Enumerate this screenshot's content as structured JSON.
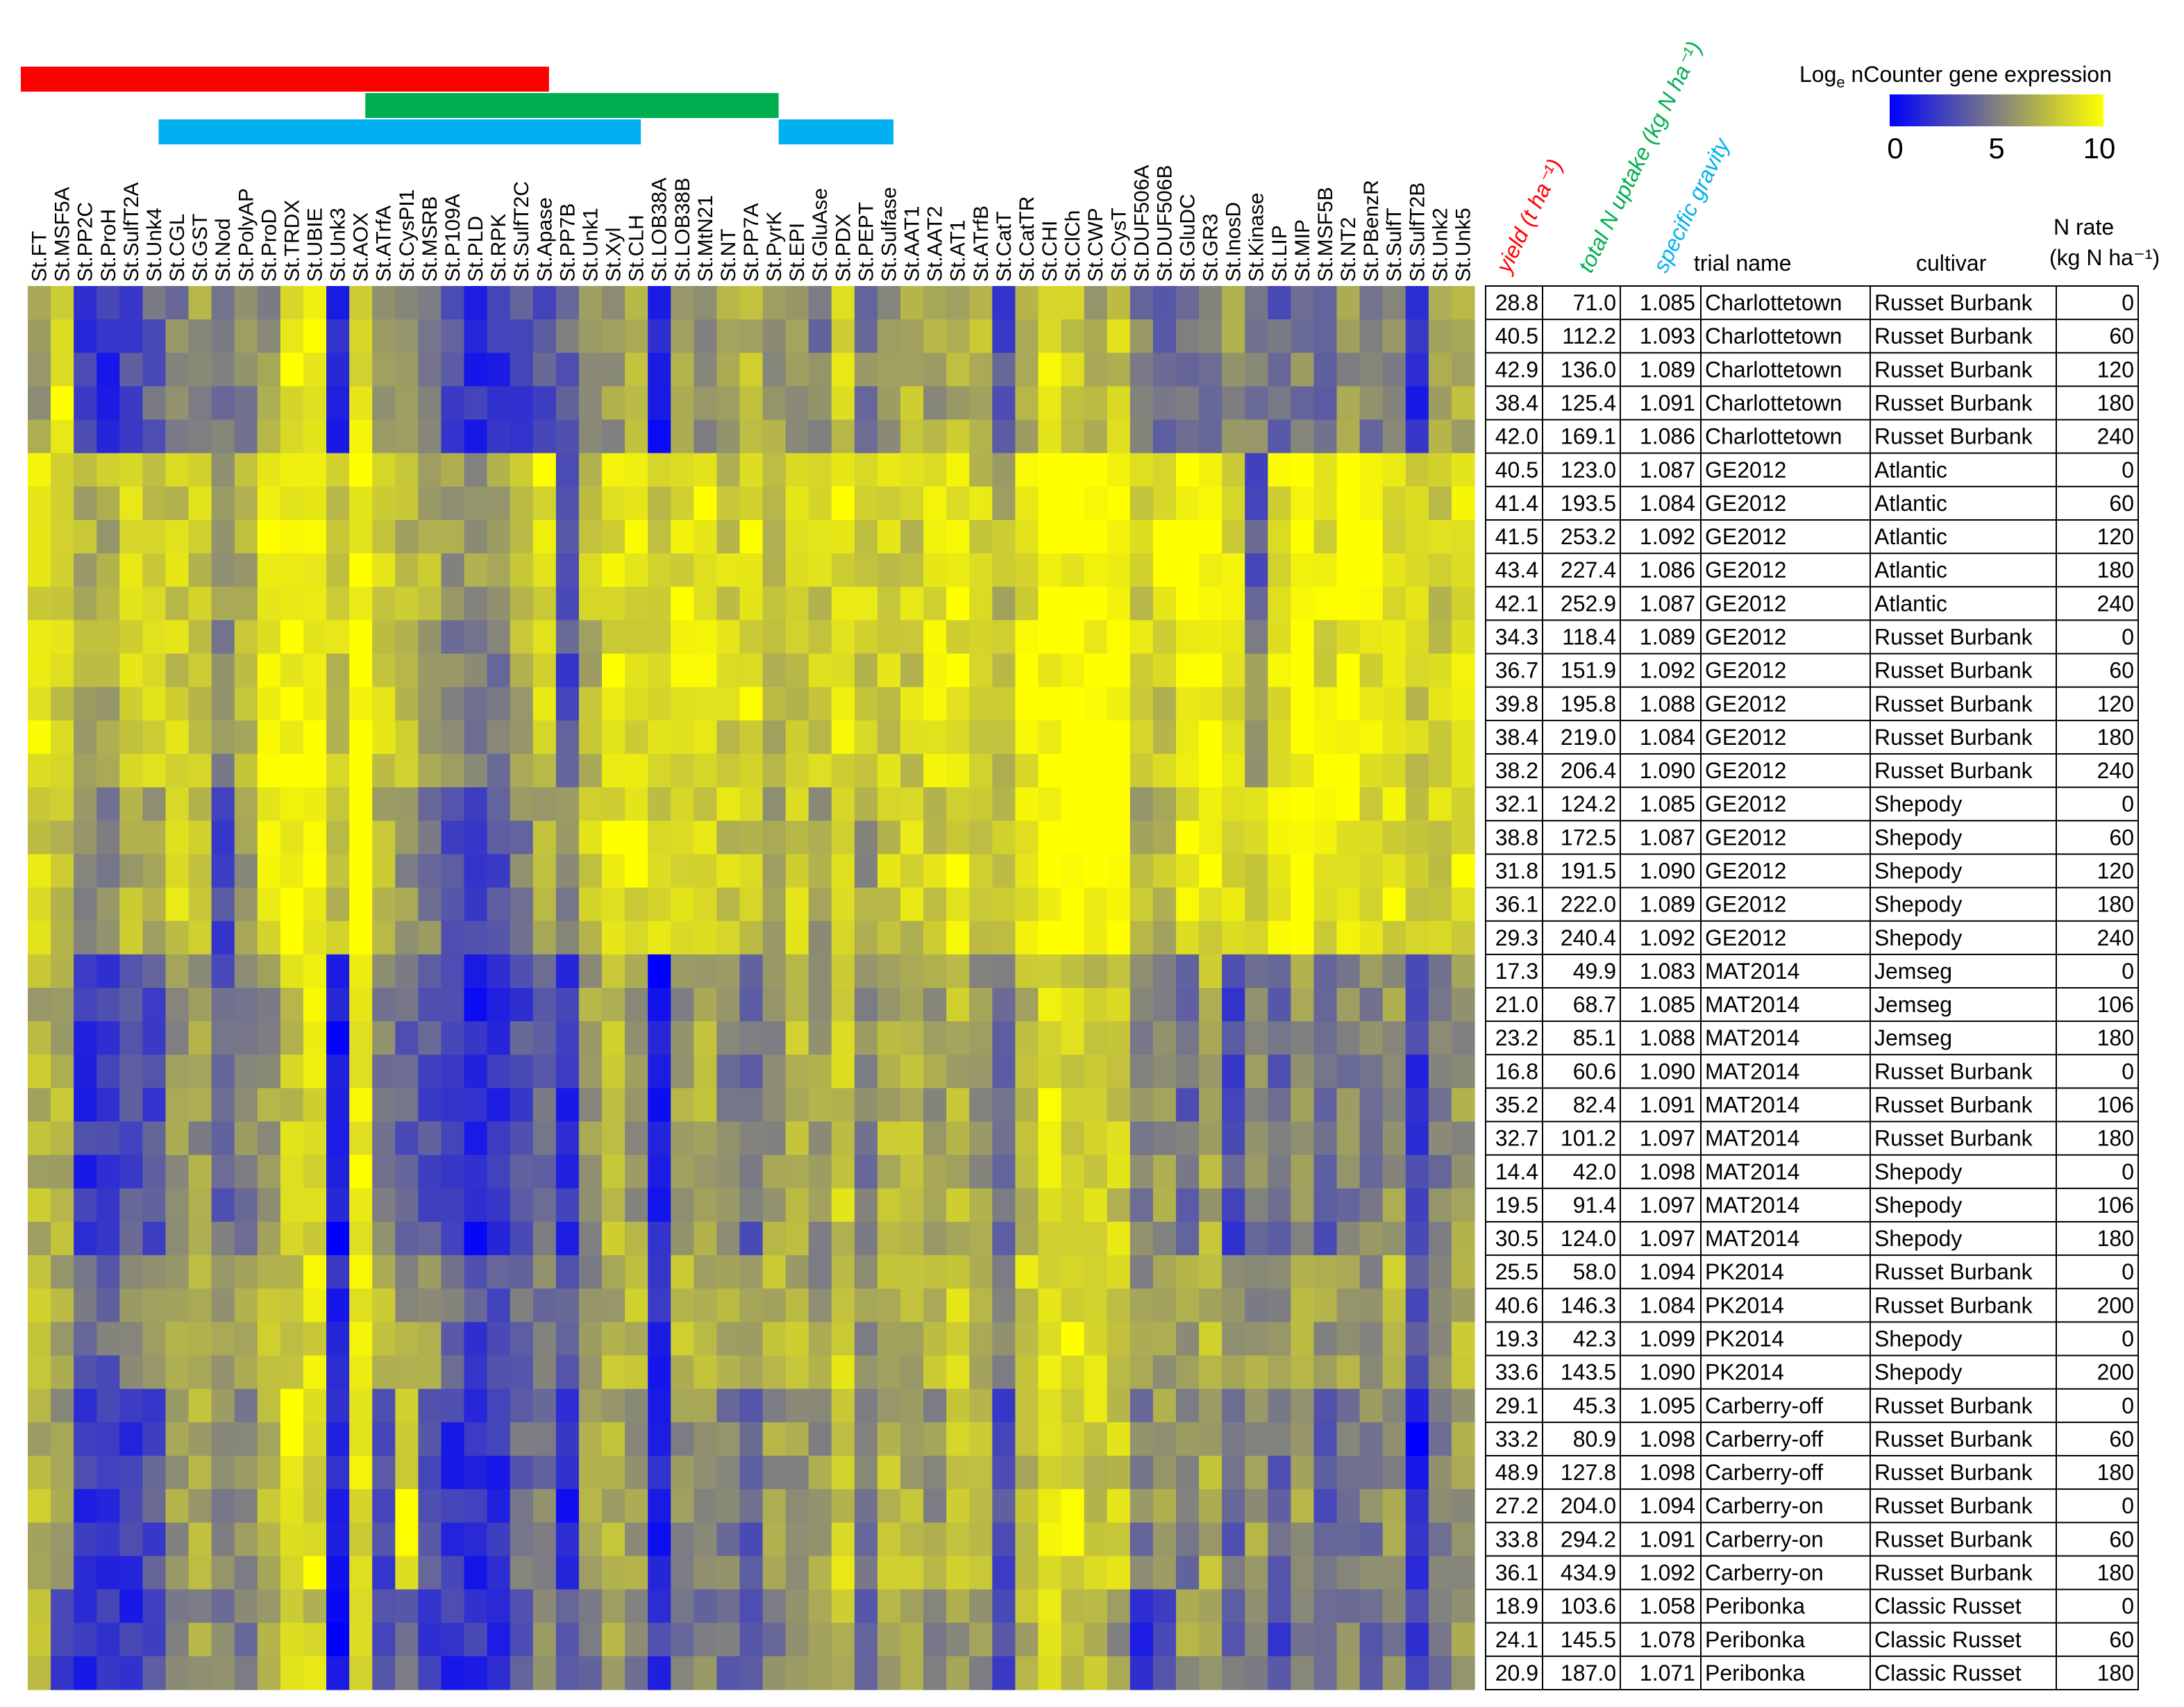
{
  "chart_data": {
    "type": "heatmap",
    "genes": [
      "St.FT",
      "St.MSF5A",
      "St.PP2C",
      "St.ProH",
      "St.SulfT2A",
      "St.Unk4",
      "St.CGL",
      "St.GST",
      "St.Nod",
      "St.PolyAP",
      "St.ProD",
      "St.TRDX",
      "St.UBIE",
      "St.Unk3",
      "St.AOX",
      "St.ATrfA",
      "St.CysPI1",
      "St.MSRB",
      "St.P109A",
      "St.PLD",
      "St.RPK",
      "St.SulfT2C",
      "St.Apase",
      "St.PP7B",
      "St.Unk1",
      "St.Xyl",
      "St.CLH",
      "St.LOB38A",
      "St.LOB38B",
      "St.MtN21",
      "St.NT",
      "St.PP7A",
      "St.PyrK",
      "St.EPI",
      "St.GluAse",
      "St.PDX",
      "St.PEPT",
      "St.Sulfase",
      "St.AAT1",
      "St.AAT2",
      "St.AT1",
      "St.ATrfB",
      "St.CatT",
      "St.CatTR",
      "St.CHI",
      "St.ClCh",
      "St.CWP",
      "St.CysT",
      "St.DUF506A",
      "St.DUF506B",
      "St.GluDC",
      "St.GR3",
      "St.InosD",
      "St.Kinase",
      "St.LIP",
      "St.MIP",
      "St.MSF5B",
      "St.NT2",
      "St.PBenzR",
      "St.SulfT",
      "St.SulfT2B",
      "St.Unk2",
      "St.Unk5"
    ],
    "legend": {
      "title_main": "Log",
      "title_sub": "e",
      "title_rest": " nCounter  gene  expression",
      "min": 0,
      "max": 10,
      "ticks": [
        "0",
        "5",
        "10"
      ],
      "color_low": "#0000ff",
      "color_mid": "#808080",
      "color_high": "#ffff00"
    },
    "cluster_bars": [
      {
        "color": "#ff0000",
        "from_gene": 0,
        "to_gene": 22
      },
      {
        "color": "#00b050",
        "from_gene": 15,
        "to_gene": 32
      },
      {
        "color": "#00b0f0",
        "from_gene": 6,
        "to_gene": 26
      },
      {
        "color": "#00b0f0",
        "from_gene": 33,
        "to_gene": 37
      }
    ],
    "column_headers": {
      "yield": "yield (t ha⁻¹)",
      "n_uptake": "total N uptake (kg N ha⁻¹)",
      "sg": "specific gravity",
      "trial": "trial name",
      "cultivar": "cultivar",
      "nrate_line1": "N rate",
      "nrate_line2": "(kg N ha⁻¹)"
    },
    "header_colors": {
      "yield": "#ff0000",
      "n_uptake": "#00b050",
      "sg": "#00b0f0"
    },
    "rows": [
      {
        "yield": "28.8",
        "n_uptake": "71.0",
        "sg": "1.085",
        "trial": "Charlottetown",
        "cultivar": "Russet Burbank",
        "n_rate": "0"
      },
      {
        "yield": "40.5",
        "n_uptake": "112.2",
        "sg": "1.093",
        "trial": "Charlottetown",
        "cultivar": "Russet Burbank",
        "n_rate": "60"
      },
      {
        "yield": "42.9",
        "n_uptake": "136.0",
        "sg": "1.089",
        "trial": "Charlottetown",
        "cultivar": "Russet Burbank",
        "n_rate": "120"
      },
      {
        "yield": "38.4",
        "n_uptake": "125.4",
        "sg": "1.091",
        "trial": "Charlottetown",
        "cultivar": "Russet Burbank",
        "n_rate": "180"
      },
      {
        "yield": "42.0",
        "n_uptake": "169.1",
        "sg": "1.086",
        "trial": "Charlottetown",
        "cultivar": "Russet Burbank",
        "n_rate": "240"
      },
      {
        "yield": "40.5",
        "n_uptake": "123.0",
        "sg": "1.087",
        "trial": "GE2012",
        "cultivar": "Atlantic",
        "n_rate": "0"
      },
      {
        "yield": "41.4",
        "n_uptake": "193.5",
        "sg": "1.084",
        "trial": "GE2012",
        "cultivar": "Atlantic",
        "n_rate": "60"
      },
      {
        "yield": "41.5",
        "n_uptake": "253.2",
        "sg": "1.092",
        "trial": "GE2012",
        "cultivar": "Atlantic",
        "n_rate": "120"
      },
      {
        "yield": "43.4",
        "n_uptake": "227.4",
        "sg": "1.086",
        "trial": "GE2012",
        "cultivar": "Atlantic",
        "n_rate": "180"
      },
      {
        "yield": "42.1",
        "n_uptake": "252.9",
        "sg": "1.087",
        "trial": "GE2012",
        "cultivar": "Atlantic",
        "n_rate": "240"
      },
      {
        "yield": "34.3",
        "n_uptake": "118.4",
        "sg": "1.089",
        "trial": "GE2012",
        "cultivar": "Russet Burbank",
        "n_rate": "0"
      },
      {
        "yield": "36.7",
        "n_uptake": "151.9",
        "sg": "1.092",
        "trial": "GE2012",
        "cultivar": "Russet Burbank",
        "n_rate": "60"
      },
      {
        "yield": "39.8",
        "n_uptake": "195.8",
        "sg": "1.088",
        "trial": "GE2012",
        "cultivar": "Russet Burbank",
        "n_rate": "120"
      },
      {
        "yield": "38.4",
        "n_uptake": "219.0",
        "sg": "1.084",
        "trial": "GE2012",
        "cultivar": "Russet Burbank",
        "n_rate": "180"
      },
      {
        "yield": "38.2",
        "n_uptake": "206.4",
        "sg": "1.090",
        "trial": "GE2012",
        "cultivar": "Russet Burbank",
        "n_rate": "240"
      },
      {
        "yield": "32.1",
        "n_uptake": "124.2",
        "sg": "1.085",
        "trial": "GE2012",
        "cultivar": "Shepody",
        "n_rate": "0"
      },
      {
        "yield": "38.8",
        "n_uptake": "172.5",
        "sg": "1.087",
        "trial": "GE2012",
        "cultivar": "Shepody",
        "n_rate": "60"
      },
      {
        "yield": "31.8",
        "n_uptake": "191.5",
        "sg": "1.090",
        "trial": "GE2012",
        "cultivar": "Shepody",
        "n_rate": "120"
      },
      {
        "yield": "36.1",
        "n_uptake": "222.0",
        "sg": "1.089",
        "trial": "GE2012",
        "cultivar": "Shepody",
        "n_rate": "180"
      },
      {
        "yield": "29.3",
        "n_uptake": "240.4",
        "sg": "1.092",
        "trial": "GE2012",
        "cultivar": "Shepody",
        "n_rate": "240"
      },
      {
        "yield": "17.3",
        "n_uptake": "49.9",
        "sg": "1.083",
        "trial": "MAT2014",
        "cultivar": "Jemseg",
        "n_rate": "0"
      },
      {
        "yield": "21.0",
        "n_uptake": "68.7",
        "sg": "1.085",
        "trial": "MAT2014",
        "cultivar": "Jemseg",
        "n_rate": "106"
      },
      {
        "yield": "23.2",
        "n_uptake": "85.1",
        "sg": "1.088",
        "trial": "MAT2014",
        "cultivar": "Jemseg",
        "n_rate": "180"
      },
      {
        "yield": "16.8",
        "n_uptake": "60.6",
        "sg": "1.090",
        "trial": "MAT2014",
        "cultivar": "Russet Burbank",
        "n_rate": "0"
      },
      {
        "yield": "35.2",
        "n_uptake": "82.4",
        "sg": "1.091",
        "trial": "MAT2014",
        "cultivar": "Russet Burbank",
        "n_rate": "106"
      },
      {
        "yield": "32.7",
        "n_uptake": "101.2",
        "sg": "1.097",
        "trial": "MAT2014",
        "cultivar": "Russet Burbank",
        "n_rate": "180"
      },
      {
        "yield": "14.4",
        "n_uptake": "42.0",
        "sg": "1.098",
        "trial": "MAT2014",
        "cultivar": "Shepody",
        "n_rate": "0"
      },
      {
        "yield": "19.5",
        "n_uptake": "91.4",
        "sg": "1.097",
        "trial": "MAT2014",
        "cultivar": "Shepody",
        "n_rate": "106"
      },
      {
        "yield": "30.5",
        "n_uptake": "124.0",
        "sg": "1.097",
        "trial": "MAT2014",
        "cultivar": "Shepody",
        "n_rate": "180"
      },
      {
        "yield": "25.5",
        "n_uptake": "58.0",
        "sg": "1.094",
        "trial": "PK2014",
        "cultivar": "Russet Burbank",
        "n_rate": "0"
      },
      {
        "yield": "40.6",
        "n_uptake": "146.3",
        "sg": "1.084",
        "trial": "PK2014",
        "cultivar": "Russet Burbank",
        "n_rate": "200"
      },
      {
        "yield": "19.3",
        "n_uptake": "42.3",
        "sg": "1.099",
        "trial": "PK2014",
        "cultivar": "Shepody",
        "n_rate": "0"
      },
      {
        "yield": "33.6",
        "n_uptake": "143.5",
        "sg": "1.090",
        "trial": "PK2014",
        "cultivar": "Shepody",
        "n_rate": "200"
      },
      {
        "yield": "29.1",
        "n_uptake": "45.3",
        "sg": "1.095",
        "trial": "Carberry-off",
        "cultivar": "Russet Burbank",
        "n_rate": "0"
      },
      {
        "yield": "33.2",
        "n_uptake": "80.9",
        "sg": "1.098",
        "trial": "Carberry-off",
        "cultivar": "Russet Burbank",
        "n_rate": "60"
      },
      {
        "yield": "48.9",
        "n_uptake": "127.8",
        "sg": "1.098",
        "trial": "Carberry-off",
        "cultivar": "Russet Burbank",
        "n_rate": "180"
      },
      {
        "yield": "27.2",
        "n_uptake": "204.0",
        "sg": "1.094",
        "trial": "Carberry-on",
        "cultivar": "Russet Burbank",
        "n_rate": "0"
      },
      {
        "yield": "33.8",
        "n_uptake": "294.2",
        "sg": "1.091",
        "trial": "Carberry-on",
        "cultivar": "Russet Burbank",
        "n_rate": "60"
      },
      {
        "yield": "36.1",
        "n_uptake": "434.9",
        "sg": "1.092",
        "trial": "Carberry-on",
        "cultivar": "Russet Burbank",
        "n_rate": "180"
      },
      {
        "yield": "18.9",
        "n_uptake": "103.6",
        "sg": "1.058",
        "trial": "Peribonka",
        "cultivar": "Classic Russet",
        "n_rate": "0"
      },
      {
        "yield": "24.1",
        "n_uptake": "145.5",
        "sg": "1.078",
        "trial": "Peribonka",
        "cultivar": "Classic Russet",
        "n_rate": "60"
      },
      {
        "yield": "20.9",
        "n_uptake": "187.0",
        "sg": "1.071",
        "trial": "Peribonka",
        "cultivar": "Classic Russet",
        "n_rate": "180"
      }
    ],
    "group_expression_profile": {
      "Charlottetown": [
        6,
        9,
        2,
        2,
        3,
        4,
        5,
        6,
        5,
        5,
        6,
        9,
        9,
        1,
        9,
        6,
        5,
        5,
        3,
        2,
        2,
        3,
        3,
        4,
        6,
        6,
        7,
        1,
        6,
        6,
        6,
        7,
        6,
        6,
        5,
        8,
        5,
        6,
        7,
        6,
        7,
        7,
        3,
        7,
        9,
        8,
        7,
        8,
        5,
        4,
        4,
        5,
        6,
        5,
        4,
        5,
        4,
        6,
        5,
        6,
        2,
        6,
        7
      ],
      "GE2012_Atlantic": [
        9,
        8,
        7,
        7,
        8,
        8,
        8,
        8,
        6,
        7,
        9,
        10,
        10,
        8,
        10,
        8,
        7,
        7,
        6,
        6,
        6,
        8,
        9,
        4,
        8,
        9,
        9,
        8,
        9,
        9,
        8,
        9,
        7,
        8,
        8,
        9,
        8,
        8,
        8,
        9,
        9,
        8,
        7,
        9,
        10,
        10,
        10,
        10,
        8,
        9,
        10,
        10,
        9,
        3,
        9,
        10,
        9,
        10,
        10,
        9,
        8,
        8,
        9
      ],
      "GE2012_Russet": [
        9,
        8,
        7,
        7,
        8,
        8,
        8,
        8,
        5,
        7,
        9,
        10,
        10,
        8,
        10,
        8,
        7,
        6,
        5,
        5,
        5,
        7,
        8,
        3,
        7,
        9,
        9,
        8,
        9,
        9,
        8,
        9,
        7,
        8,
        8,
        9,
        8,
        8,
        8,
        9,
        9,
        8,
        7,
        9,
        10,
        10,
        10,
        10,
        8,
        8,
        10,
        10,
        9,
        6,
        9,
        10,
        9,
        9,
        9,
        9,
        8,
        8,
        9
      ],
      "GE2012_Shepody": [
        8,
        7,
        6,
        5,
        7,
        6,
        8,
        7,
        3,
        6,
        9,
        10,
        10,
        8,
        10,
        7,
        6,
        5,
        3,
        3,
        3,
        5,
        7,
        5,
        8,
        9,
        9,
        8,
        9,
        8,
        8,
        8,
        6,
        8,
        6,
        8,
        6,
        8,
        8,
        8,
        9,
        8,
        7,
        9,
        10,
        10,
        10,
        10,
        7,
        7,
        9,
        9,
        9,
        8,
        9,
        10,
        9,
        9,
        9,
        9,
        8,
        8,
        9
      ],
      "MAT2014": [
        7,
        7,
        2,
        2,
        3,
        3,
        6,
        6,
        4,
        5,
        6,
        8,
        9,
        1,
        9,
        5,
        4,
        3,
        2,
        1,
        2,
        3,
        4,
        2,
        6,
        7,
        6,
        1,
        6,
        7,
        5,
        4,
        6,
        7,
        6,
        8,
        5,
        7,
        7,
        6,
        7,
        6,
        4,
        7,
        9,
        8,
        8,
        8,
        5,
        6,
        4,
        7,
        3,
        5,
        4,
        6,
        4,
        5,
        5,
        6,
        2,
        5,
        6
      ],
      "PK2014": [
        8,
        7,
        4,
        4,
        5,
        6,
        7,
        7,
        6,
        6,
        7,
        8,
        9,
        2,
        9,
        7,
        6,
        6,
        4,
        3,
        3,
        4,
        5,
        4,
        6,
        7,
        7,
        2,
        7,
        7,
        7,
        6,
        7,
        7,
        6,
        8,
        6,
        7,
        7,
        7,
        8,
        7,
        5,
        8,
        9,
        9,
        8,
        8,
        6,
        6,
        6,
        7,
        6,
        6,
        6,
        7,
        6,
        6,
        6,
        7,
        3,
        6,
        7
      ],
      "Carberry": [
        7,
        6,
        2,
        2,
        2,
        3,
        6,
        7,
        5,
        5,
        7,
        9,
        9,
        1,
        9,
        3,
        9,
        3,
        2,
        2,
        2,
        4,
        5,
        1,
        6,
        7,
        6,
        1,
        6,
        6,
        5,
        4,
        6,
        6,
        6,
        8,
        5,
        7,
        7,
        6,
        8,
        7,
        3,
        7,
        9,
        9,
        8,
        8,
        5,
        6,
        5,
        7,
        4,
        6,
        4,
        6,
        4,
        5,
        5,
        6,
        1,
        5,
        6
      ],
      "Peribonka": [
        7,
        3,
        2,
        2,
        2,
        3,
        5,
        6,
        5,
        5,
        6,
        8,
        8,
        1,
        9,
        3,
        4,
        3,
        2,
        2,
        2,
        3,
        5,
        4,
        5,
        6,
        5,
        2,
        5,
        5,
        4,
        3,
        5,
        5,
        6,
        7,
        4,
        6,
        6,
        5,
        6,
        6,
        3,
        7,
        8,
        7,
        7,
        6,
        2,
        3,
        6,
        6,
        4,
        5,
        3,
        5,
        4,
        5,
        4,
        5,
        2,
        5,
        6
      ]
    }
  }
}
